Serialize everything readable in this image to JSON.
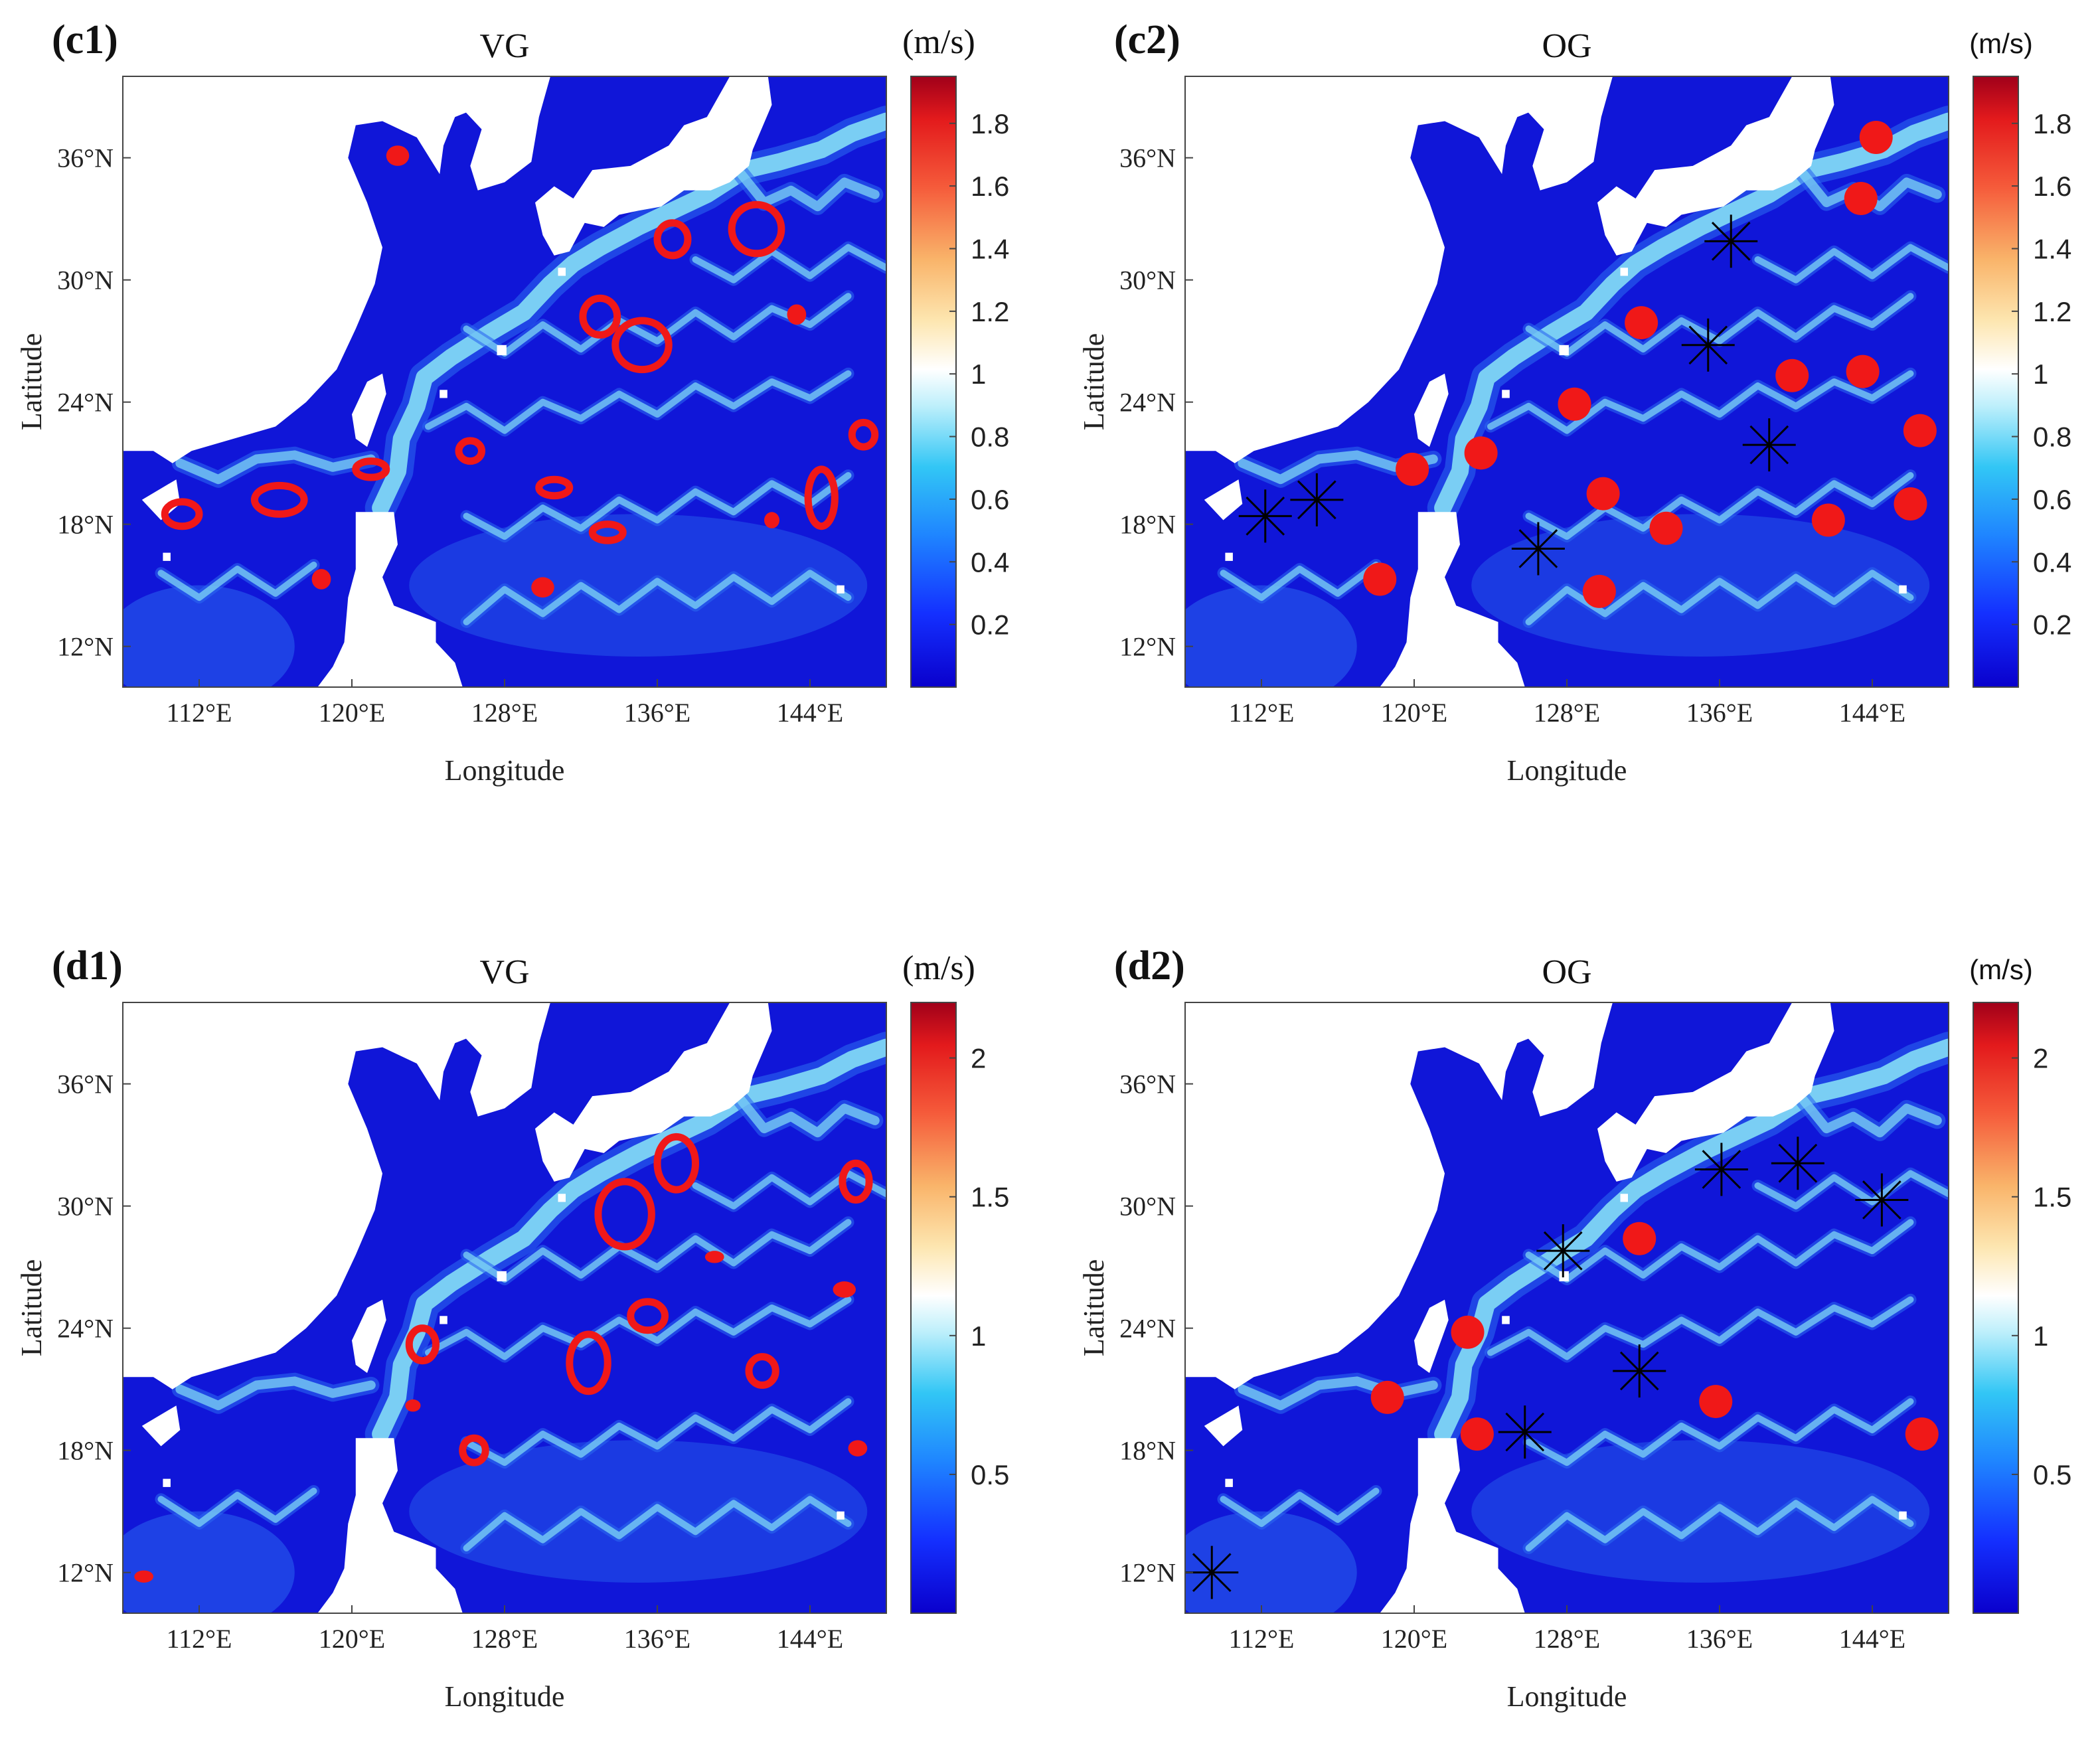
{
  "colors": {
    "ocean_deep": "#1016d8",
    "ocean_mid": "#2a66f0",
    "current_light": "#7fd6f4",
    "land": "#ffffff",
    "eddy_red": "#f01818",
    "star_black": "#000000"
  },
  "panels": [
    {
      "id": "c1",
      "tag": "(c1)",
      "title": "VG",
      "xlabel": "Longitude",
      "ylabel": "Latitude",
      "xticks": [
        "112°E",
        "120°E",
        "128°E",
        "136°E",
        "144°E"
      ],
      "yticks": [
        "36°N",
        "30°N",
        "24°N",
        "18°N",
        "12°N"
      ],
      "colorbar": {
        "unit": "(m/s)",
        "unit_font": "serif",
        "ticks": [
          "1.8",
          "1.6",
          "1.4",
          "1.2",
          "1",
          "0.8",
          "0.6",
          "0.4",
          "0.2"
        ],
        "range": [
          0,
          1.95
        ]
      },
      "chart_data": {
        "type": "heatmap",
        "title": "VG",
        "xlabel": "Longitude",
        "ylabel": "Latitude",
        "x_range_deg_e": [
          108,
          148
        ],
        "y_range_deg_n": [
          10,
          40
        ],
        "colorbar_unit": "m/s",
        "colorbar_range": [
          0,
          1.95
        ],
        "eddy_contours": [
          {
            "lon": 122.4,
            "lat": 36.1,
            "rx": 0.6,
            "ry": 0.5,
            "filled": true
          },
          {
            "lon": 136.8,
            "lat": 32.0,
            "rx": 0.8,
            "ry": 0.8
          },
          {
            "lon": 141.2,
            "lat": 32.5,
            "rx": 1.3,
            "ry": 1.2
          },
          {
            "lon": 133.0,
            "lat": 28.2,
            "rx": 0.9,
            "ry": 0.9
          },
          {
            "lon": 135.2,
            "lat": 26.8,
            "rx": 1.4,
            "ry": 1.2
          },
          {
            "lon": 143.3,
            "lat": 28.3,
            "rx": 0.5,
            "ry": 0.5,
            "filled": true
          },
          {
            "lon": 146.8,
            "lat": 22.4,
            "rx": 0.6,
            "ry": 0.6
          },
          {
            "lon": 126.2,
            "lat": 21.6,
            "rx": 0.6,
            "ry": 0.5
          },
          {
            "lon": 121.0,
            "lat": 20.7,
            "rx": 0.8,
            "ry": 0.4
          },
          {
            "lon": 130.6,
            "lat": 19.8,
            "rx": 0.8,
            "ry": 0.4
          },
          {
            "lon": 144.6,
            "lat": 19.3,
            "rx": 0.7,
            "ry": 1.4
          },
          {
            "lon": 142.0,
            "lat": 18.2,
            "rx": 0.4,
            "ry": 0.4,
            "filled": true
          },
          {
            "lon": 116.2,
            "lat": 19.2,
            "rx": 1.3,
            "ry": 0.7
          },
          {
            "lon": 111.1,
            "lat": 18.5,
            "rx": 0.9,
            "ry": 0.6
          },
          {
            "lon": 133.4,
            "lat": 17.6,
            "rx": 0.8,
            "ry": 0.4
          },
          {
            "lon": 118.4,
            "lat": 15.3,
            "rx": 0.5,
            "ry": 0.5,
            "filled": true
          },
          {
            "lon": 130.0,
            "lat": 14.9,
            "rx": 0.6,
            "ry": 0.5,
            "filled": true
          }
        ]
      }
    },
    {
      "id": "c2",
      "tag": "(c2)",
      "title": "OG",
      "xlabel": "Longitude",
      "ylabel": "Latitude",
      "xticks": [
        "112°E",
        "120°E",
        "128°E",
        "136°E",
        "144°E"
      ],
      "yticks": [
        "36°N",
        "30°N",
        "24°N",
        "18°N",
        "12°N"
      ],
      "colorbar": {
        "unit": "(m/s)",
        "unit_font": "sans",
        "ticks": [
          "1.8",
          "1.6",
          "1.4",
          "1.2",
          "1",
          "0.8",
          "0.6",
          "0.4",
          "0.2"
        ],
        "range": [
          0,
          1.95
        ]
      },
      "chart_data": {
        "type": "heatmap",
        "title": "OG",
        "xlabel": "Longitude",
        "ylabel": "Latitude",
        "x_range_deg_e": [
          108,
          148
        ],
        "y_range_deg_n": [
          10,
          40
        ],
        "colorbar_unit": "m/s",
        "colorbar_range": [
          0,
          1.95
        ],
        "dots": [
          {
            "lon": 144.2,
            "lat": 37.0
          },
          {
            "lon": 143.4,
            "lat": 34.0
          },
          {
            "lon": 131.9,
            "lat": 27.9
          },
          {
            "lon": 139.8,
            "lat": 25.3
          },
          {
            "lon": 143.5,
            "lat": 25.5
          },
          {
            "lon": 146.5,
            "lat": 22.6
          },
          {
            "lon": 128.4,
            "lat": 23.9
          },
          {
            "lon": 123.5,
            "lat": 21.5
          },
          {
            "lon": 119.9,
            "lat": 20.7
          },
          {
            "lon": 129.9,
            "lat": 19.5
          },
          {
            "lon": 141.7,
            "lat": 18.2
          },
          {
            "lon": 146.0,
            "lat": 19.0
          },
          {
            "lon": 133.2,
            "lat": 17.8
          },
          {
            "lon": 118.2,
            "lat": 15.3
          },
          {
            "lon": 129.7,
            "lat": 14.7
          }
        ],
        "stars": [
          {
            "lon": 136.6,
            "lat": 31.9
          },
          {
            "lon": 135.4,
            "lat": 26.8
          },
          {
            "lon": 138.6,
            "lat": 21.9
          },
          {
            "lon": 112.2,
            "lat": 18.4
          },
          {
            "lon": 114.9,
            "lat": 19.2
          },
          {
            "lon": 126.5,
            "lat": 16.8
          }
        ]
      }
    },
    {
      "id": "d1",
      "tag": "(d1)",
      "title": "VG",
      "xlabel": "Longitude",
      "ylabel": "Latitude",
      "xticks": [
        "112°E",
        "120°E",
        "128°E",
        "136°E",
        "144°E"
      ],
      "yticks": [
        "36°N",
        "30°N",
        "24°N",
        "18°N",
        "12°N"
      ],
      "colorbar": {
        "unit": "(m/s)",
        "unit_font": "serif",
        "ticks": [
          "2",
          "1.5",
          "1",
          "0.5"
        ],
        "range": [
          0,
          2.2
        ]
      },
      "chart_data": {
        "type": "heatmap",
        "title": "VG",
        "xlabel": "Longitude",
        "ylabel": "Latitude",
        "x_range_deg_e": [
          108,
          148
        ],
        "y_range_deg_n": [
          10,
          40
        ],
        "colorbar_unit": "m/s",
        "colorbar_range": [
          0,
          2.2
        ],
        "eddy_contours": [
          {
            "lon": 137.0,
            "lat": 32.1,
            "rx": 1.0,
            "ry": 1.3
          },
          {
            "lon": 134.3,
            "lat": 29.6,
            "rx": 1.4,
            "ry": 1.6
          },
          {
            "lon": 146.4,
            "lat": 31.2,
            "rx": 0.7,
            "ry": 0.9
          },
          {
            "lon": 139.0,
            "lat": 27.5,
            "rx": 0.5,
            "ry": 0.3,
            "filled": true
          },
          {
            "lon": 145.8,
            "lat": 25.9,
            "rx": 0.6,
            "ry": 0.4,
            "filled": true
          },
          {
            "lon": 135.5,
            "lat": 24.6,
            "rx": 0.9,
            "ry": 0.7
          },
          {
            "lon": 132.4,
            "lat": 22.3,
            "rx": 1.0,
            "ry": 1.4
          },
          {
            "lon": 141.5,
            "lat": 21.9,
            "rx": 0.7,
            "ry": 0.7
          },
          {
            "lon": 123.7,
            "lat": 23.2,
            "rx": 0.7,
            "ry": 0.8
          },
          {
            "lon": 123.2,
            "lat": 20.2,
            "rx": 0.4,
            "ry": 0.3,
            "filled": true
          },
          {
            "lon": 126.4,
            "lat": 18.0,
            "rx": 0.6,
            "ry": 0.6
          },
          {
            "lon": 146.5,
            "lat": 18.1,
            "rx": 0.5,
            "ry": 0.4,
            "filled": true
          },
          {
            "lon": 109.1,
            "lat": 11.8,
            "rx": 0.5,
            "ry": 0.3,
            "filled": true
          }
        ]
      }
    },
    {
      "id": "d2",
      "tag": "(d2)",
      "title": "OG",
      "xlabel": "Longitude",
      "ylabel": "Latitude",
      "xticks": [
        "112°E",
        "120°E",
        "128°E",
        "136°E",
        "144°E"
      ],
      "yticks": [
        "36°N",
        "30°N",
        "24°N",
        "18°N",
        "12°N"
      ],
      "colorbar": {
        "unit": "(m/s)",
        "unit_font": "sans",
        "ticks": [
          "2",
          "1.5",
          "1",
          "0.5"
        ],
        "range": [
          0,
          2.2
        ]
      },
      "chart_data": {
        "type": "heatmap",
        "title": "OG",
        "xlabel": "Longitude",
        "ylabel": "Latitude",
        "x_range_deg_e": [
          108,
          148
        ],
        "y_range_deg_n": [
          10,
          40
        ],
        "colorbar_unit": "m/s",
        "colorbar_range": [
          0,
          2.2
        ],
        "dots": [
          {
            "lon": 131.8,
            "lat": 28.4
          },
          {
            "lon": 122.8,
            "lat": 23.8
          },
          {
            "lon": 118.6,
            "lat": 20.6
          },
          {
            "lon": 123.3,
            "lat": 18.8
          },
          {
            "lon": 135.8,
            "lat": 20.4
          },
          {
            "lon": 146.6,
            "lat": 18.8
          }
        ],
        "stars": [
          {
            "lon": 136.1,
            "lat": 31.8
          },
          {
            "lon": 140.1,
            "lat": 32.1
          },
          {
            "lon": 144.5,
            "lat": 30.3
          },
          {
            "lon": 127.8,
            "lat": 27.8
          },
          {
            "lon": 131.8,
            "lat": 21.9
          },
          {
            "lon": 125.8,
            "lat": 18.9
          },
          {
            "lon": 109.4,
            "lat": 12.0
          }
        ]
      }
    }
  ]
}
